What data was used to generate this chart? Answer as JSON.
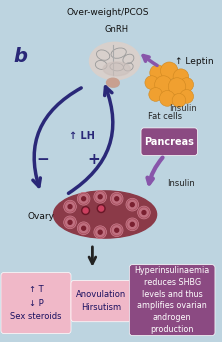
{
  "title": "Over-weight/PCOS",
  "background_color": "#bdd4e0",
  "label_b": "b",
  "label_gnrh": "GnRH",
  "label_leptin": "↑ Leptin",
  "label_fat_cells": "Fat cells",
  "label_insulin_top": "Insulin",
  "label_pancreas": "Pancreas",
  "label_insulin_bottom": "Insulin",
  "label_lh": "↑ LH",
  "label_minus": "−",
  "label_plus": "+",
  "label_ovary": "Ovary",
  "box1_text": "↑ T\n↓ P\nSex steroids",
  "box2_text": "Anovulation\nHirsutism",
  "box3_text": "Hyperinsulinaemia\nreduces SHBG\nlevels and thus\namplifies ovarian\nandrogen\nproduction",
  "box1_color": "#f0b8c8",
  "box2_color": "#f0b8c8",
  "box3_color": "#8b4a82",
  "box3_text_color": "#ffffff",
  "box1_text_color": "#1a1060",
  "box2_text_color": "#1a1060",
  "arrow_blue_color": "#2a2878",
  "arrow_purple_color": "#8855aa",
  "leptin_arrow_color": "#8855aa",
  "ovary_color": "#8b3a48",
  "fat_cell_color": "#f0a030",
  "pancreas_color": "#8b4a82",
  "brain_color": "#d8d0cc",
  "brain_line_color": "#888888",
  "pit_color": "#c8a090"
}
